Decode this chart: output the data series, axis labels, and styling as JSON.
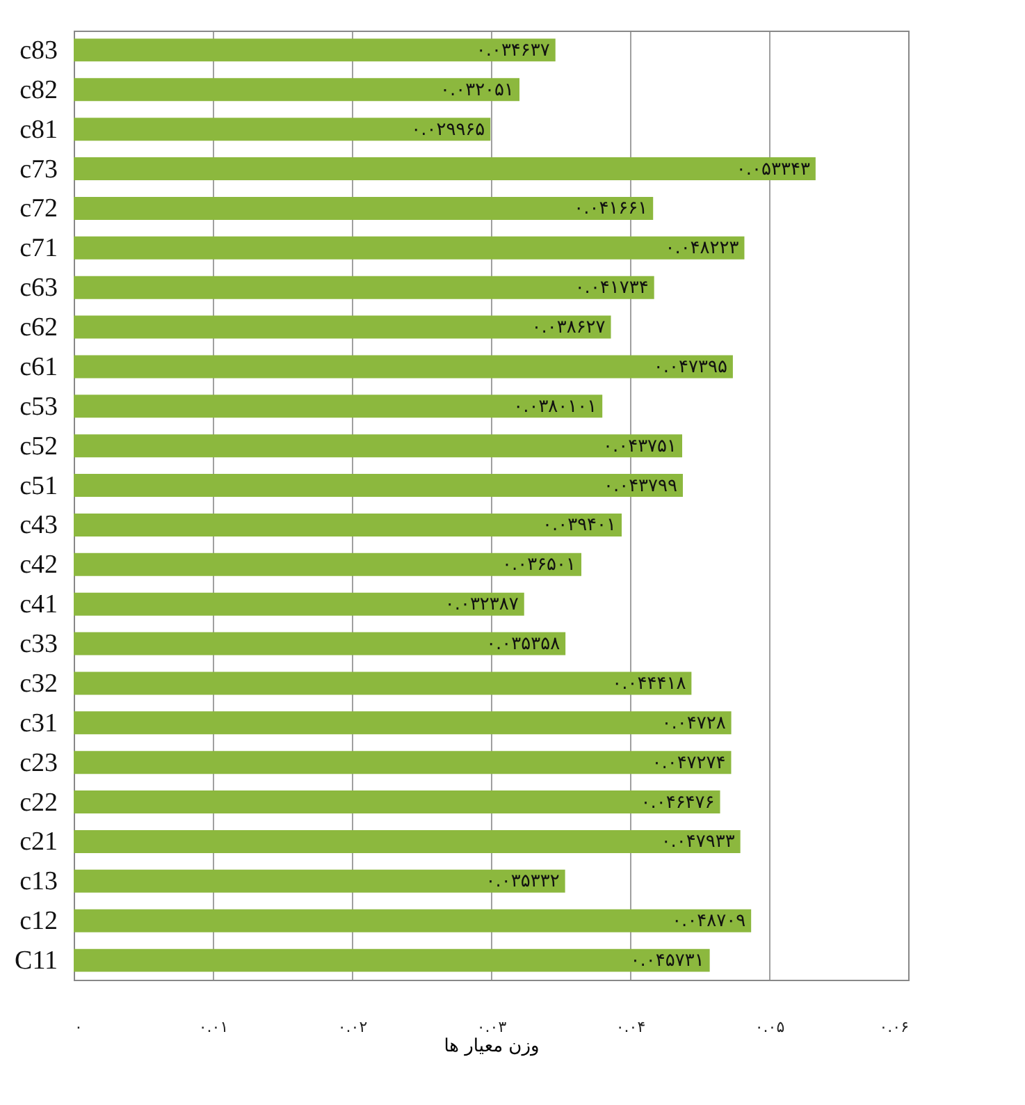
{
  "chart_data": {
    "type": "bar",
    "orientation": "horizontal",
    "xlabel": "وزن معیار ها",
    "categories": [
      "c83",
      "c82",
      "c81",
      "c73",
      "c72",
      "c71",
      "c63",
      "c62",
      "c61",
      "c53",
      "c52",
      "c51",
      "c43",
      "c42",
      "c41",
      "c33",
      "c32",
      "c31",
      "c23",
      "c22",
      "c21",
      "c13",
      "c12",
      "C11"
    ],
    "values": [
      0.034637,
      0.032051,
      0.029965,
      0.053343,
      0.041661,
      0.048223,
      0.041734,
      0.038627,
      0.047395,
      0.0380101,
      0.043751,
      0.043799,
      0.039401,
      0.036501,
      0.032387,
      0.035358,
      0.044418,
      0.04728,
      0.047274,
      0.046476,
      0.047933,
      0.035332,
      0.048709,
      0.045731
    ],
    "value_labels": [
      "۰.۰۳۴۶۳۷",
      "۰.۰۳۲۰۵۱",
      "۰.۰۲۹۹۶۵",
      "۰.۰۵۳۳۴۳",
      "۰.۰۴۱۶۶۱",
      "۰.۰۴۸۲۲۳",
      "۰.۰۴۱۷۳۴",
      "۰.۰۳۸۶۲۷",
      "۰.۰۴۷۳۹۵",
      "۰.۰۳۸۰۱۰۱",
      "۰.۰۴۳۷۵۱",
      "۰.۰۴۳۷۹۹",
      "۰.۰۳۹۴۰۱",
      "۰.۰۳۶۵۰۱",
      "۰.۰۳۲۳۸۷",
      "۰.۰۳۵۳۵۸",
      "۰.۰۴۴۴۱۸",
      "۰.۰۴۷۲۸",
      "۰.۰۴۷۲۷۴",
      "۰.۰۴۶۴۷۶",
      "۰.۰۴۷۹۳۳",
      "۰.۰۳۵۳۳۲",
      "۰.۰۴۸۷۰۹",
      "۰.۰۴۵۷۳۱"
    ],
    "color": "#8cb83e",
    "xlim": [
      0,
      0.06
    ],
    "xticks": [
      {
        "value": 0,
        "label": "۰"
      },
      {
        "value": 0.01,
        "label": "۰.۰۱"
      },
      {
        "value": 0.02,
        "label": "۰.۰۲"
      },
      {
        "value": 0.03,
        "label": "۰.۰۳"
      },
      {
        "value": 0.04,
        "label": "۰.۰۴"
      },
      {
        "value": 0.05,
        "label": "۰.۰۵"
      },
      {
        "value": 0.06,
        "label": "۰.۰۶"
      }
    ],
    "grid": true
  }
}
